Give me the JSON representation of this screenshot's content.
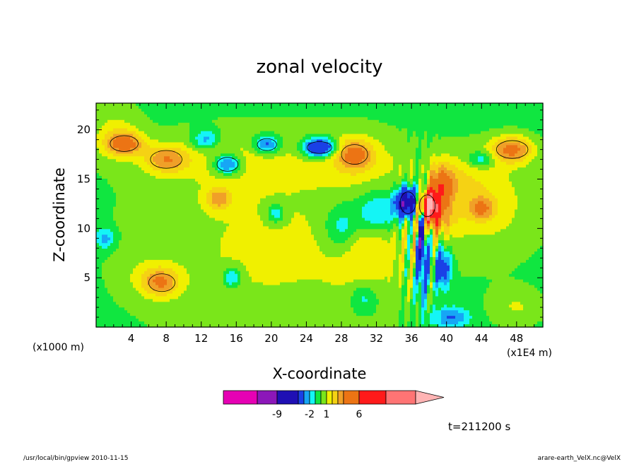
{
  "chart_data": {
    "type": "heatmap",
    "title": "zonal velocity",
    "xlabel": "X-coordinate",
    "ylabel": "Z-coordinate",
    "x_unit_label": "(x1E4 m)",
    "y_unit_label": "(x1000 m)",
    "xlim": [
      0,
      51
    ],
    "ylim": [
      0,
      22.7
    ],
    "x_ticks": [
      4,
      8,
      12,
      16,
      20,
      24,
      28,
      32,
      36,
      40,
      44,
      48
    ],
    "y_ticks": [
      5,
      10,
      15,
      20
    ],
    "colorbar": {
      "shown_labels": [
        "-9",
        "-2",
        "1",
        "6"
      ],
      "shown_label_values": [
        -9,
        -2,
        1,
        6
      ],
      "levels": [
        -15,
        -12,
        -9,
        -6,
        -3,
        -2,
        -1,
        0,
        1,
        2,
        3,
        4,
        6,
        9,
        12,
        15
      ],
      "colors": [
        "#e600b4",
        "#8c17b9",
        "#1f0fb4",
        "#1a40e6",
        "#17a6f5",
        "#14f5f5",
        "#10e640",
        "#7ae61a",
        "#f0f000",
        "#f5d214",
        "#f0a028",
        "#ec7414",
        "#ff1a1a",
        "#ff7474",
        "#ffb4b4"
      ]
    },
    "time_label": "t=211200 s",
    "features": [
      {
        "x": 37.8,
        "z": 12.3,
        "sign": "positive",
        "peak": 9
      },
      {
        "x": 35.6,
        "z": 12.6,
        "sign": "negative",
        "peak": -9
      },
      {
        "x": 37.2,
        "z": 9.0,
        "sign": "negative",
        "peak": -6
      },
      {
        "x": 25.5,
        "z": 18.2,
        "sign": "negative",
        "peak": -6
      },
      {
        "x": 3.2,
        "z": 18.6,
        "sign": "positive",
        "peak": 4
      },
      {
        "x": 47.5,
        "z": 18.0,
        "sign": "positive",
        "peak": 4
      },
      {
        "x": 15.0,
        "z": 16.5,
        "sign": "negative",
        "peak": -3
      },
      {
        "x": 19.5,
        "z": 18.5,
        "sign": "negative",
        "peak": -3
      }
    ]
  },
  "footer": {
    "left": "/usr/local/bin/gpview  2010-11-15",
    "right": "arare-earth_VelX.nc@VelX"
  }
}
